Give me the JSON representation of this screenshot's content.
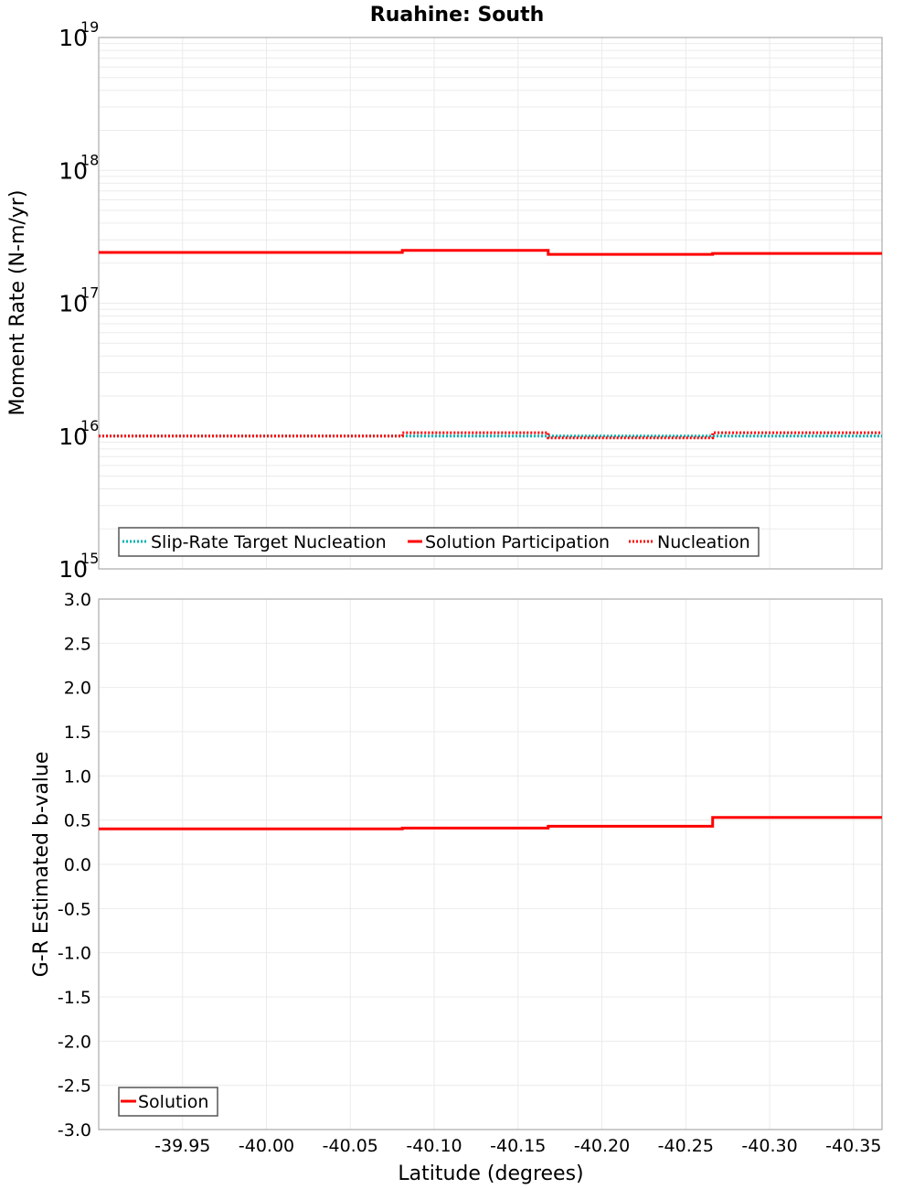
{
  "title": "Ruahine: South",
  "colors": {
    "solution": "#ff0000",
    "target": "#00b2b2",
    "nucleation": "#ff0000",
    "grid": "#ebebeb",
    "frame": "#aaaaaa"
  },
  "x_axis": {
    "label": "Latitude (degrees)",
    "range": [
      -39.9,
      -40.367
    ],
    "ticks": [
      "-39.95",
      "-40.00",
      "-40.05",
      "-40.10",
      "-40.15",
      "-40.20",
      "-40.25",
      "-40.30",
      "-40.35"
    ]
  },
  "top_panel": {
    "ylabel": "Moment Rate (N-m/yr)",
    "yticks": [
      {
        "base": "10",
        "exp": "19"
      },
      {
        "base": "10",
        "exp": "18"
      },
      {
        "base": "10",
        "exp": "17"
      },
      {
        "base": "10",
        "exp": "16"
      },
      {
        "base": "10",
        "exp": "15"
      }
    ],
    "legend": [
      "Slip-Rate Target Nucleation",
      "Solution Participation",
      "Nucleation"
    ]
  },
  "bottom_panel": {
    "ylabel": "G-R Estimated b-value",
    "yticks": [
      "3.0",
      "2.5",
      "2.0",
      "1.5",
      "1.0",
      "0.5",
      "0.0",
      "-0.5",
      "-1.0",
      "-1.5",
      "-2.0",
      "-2.5",
      "-3.0"
    ],
    "legend": [
      "Solution"
    ]
  },
  "chart_data": [
    {
      "type": "line",
      "title": "Ruahine: South",
      "xlabel": "Latitude (degrees)",
      "ylabel": "Moment Rate (N-m/yr)",
      "yscale": "log",
      "xlim": [
        -39.9,
        -40.367
      ],
      "ylim": [
        1000000000000000.0,
        1e+19
      ],
      "grid": true,
      "legend_position": "lower-left",
      "step": true,
      "x_bins": [
        [
          -39.9,
          -39.995
        ],
        [
          -39.995,
          -40.081
        ],
        [
          -40.081,
          -40.168
        ],
        [
          -40.168,
          -40.266
        ],
        [
          -40.266,
          -40.367
        ]
      ],
      "series": [
        {
          "name": "Slip-Rate Target Nucleation",
          "style": "dotted",
          "color": "#00b2b2",
          "values": [
            1e+16,
            1e+16,
            1e+16,
            1e+16,
            1e+16
          ]
        },
        {
          "name": "Solution Participation",
          "style": "solid",
          "color": "#ff0000",
          "values": [
            2.41e+17,
            2.41e+17,
            2.5e+17,
            2.33e+17,
            2.37e+17
          ]
        },
        {
          "name": "Nucleation",
          "style": "dotted",
          "color": "#ff0000",
          "values": [
            1e+16,
            1e+16,
            1.06e+16,
            9700000000000000.0,
            1.06e+16
          ]
        }
      ]
    },
    {
      "type": "line",
      "xlabel": "Latitude (degrees)",
      "ylabel": "G-R Estimated b-value",
      "xlim": [
        -39.9,
        -40.367
      ],
      "ylim": [
        -3.0,
        3.0
      ],
      "grid": true,
      "legend_position": "lower-left",
      "step": true,
      "x_bins": [
        [
          -39.9,
          -39.995
        ],
        [
          -39.995,
          -40.081
        ],
        [
          -40.081,
          -40.168
        ],
        [
          -40.168,
          -40.266
        ],
        [
          -40.266,
          -40.367
        ]
      ],
      "series": [
        {
          "name": "Solution",
          "style": "solid",
          "color": "#ff0000",
          "values": [
            0.4,
            0.4,
            0.41,
            0.43,
            0.53
          ]
        }
      ]
    }
  ]
}
